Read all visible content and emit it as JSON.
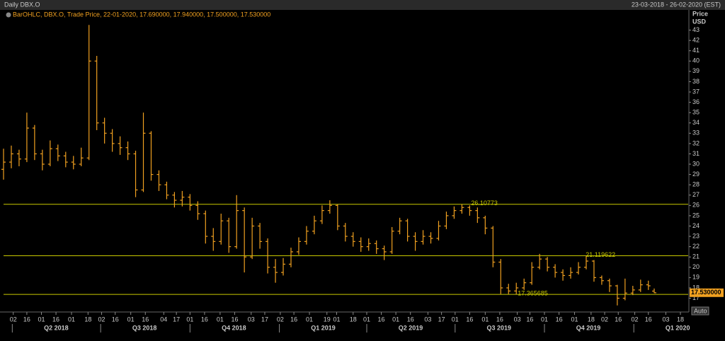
{
  "chart_data": {
    "type": "ohlc",
    "title": "Daily DBX.O",
    "range_text": "23-03-2018 - 26-02-2020 (EST)",
    "legend": "BarOHLC, DBX.O, Trade Price, 22-01-2020, 17.690000, 17.940000, 17.500000, 17.530000",
    "y_label": "Price",
    "y_unit": "USD",
    "auto_button": "Auto",
    "color": "#f0a020",
    "level_color": "#c8c800",
    "xlim": [
      0,
      705
    ],
    "ylim": [
      15.8,
      44
    ],
    "yticks": [
      17,
      18,
      19,
      20,
      21,
      22,
      23,
      24,
      25,
      26,
      27,
      28,
      29,
      30,
      31,
      32,
      33,
      34,
      35,
      36,
      37,
      38,
      39,
      40,
      41,
      42,
      43
    ],
    "xticks": [
      {
        "value": 10,
        "label": "02"
      },
      {
        "value": 24,
        "label": "16"
      },
      {
        "value": 39,
        "label": "01"
      },
      {
        "value": 54,
        "label": "16"
      },
      {
        "value": 70,
        "label": "01"
      },
      {
        "value": 87,
        "label": "18"
      },
      {
        "value": 101,
        "label": "02"
      },
      {
        "value": 115,
        "label": "16"
      },
      {
        "value": 131,
        "label": "01"
      },
      {
        "value": 146,
        "label": "16"
      },
      {
        "value": 165,
        "label": "04"
      },
      {
        "value": 178,
        "label": "17"
      },
      {
        "value": 192,
        "label": "01"
      },
      {
        "value": 207,
        "label": "16"
      },
      {
        "value": 223,
        "label": "01"
      },
      {
        "value": 238,
        "label": "16"
      },
      {
        "value": 255,
        "label": "03"
      },
      {
        "value": 269,
        "label": "17"
      },
      {
        "value": 285,
        "label": "02"
      },
      {
        "value": 299,
        "label": "16"
      },
      {
        "value": 315,
        "label": "01"
      },
      {
        "value": 333,
        "label": "19"
      },
      {
        "value": 343,
        "label": "01"
      },
      {
        "value": 360,
        "label": "18"
      },
      {
        "value": 374,
        "label": "01"
      },
      {
        "value": 389,
        "label": "16"
      },
      {
        "value": 404,
        "label": "01"
      },
      {
        "value": 419,
        "label": "16"
      },
      {
        "value": 437,
        "label": "03"
      },
      {
        "value": 451,
        "label": "17"
      },
      {
        "value": 465,
        "label": "01"
      },
      {
        "value": 480,
        "label": "16"
      },
      {
        "value": 496,
        "label": "01"
      },
      {
        "value": 511,
        "label": "16"
      },
      {
        "value": 529,
        "label": "03"
      },
      {
        "value": 542,
        "label": "16"
      },
      {
        "value": 557,
        "label": "01"
      },
      {
        "value": 572,
        "label": "16"
      },
      {
        "value": 588,
        "label": "01"
      },
      {
        "value": 605,
        "label": "18"
      },
      {
        "value": 619,
        "label": "02"
      },
      {
        "value": 633,
        "label": "16"
      },
      {
        "value": 650,
        "label": "02"
      },
      {
        "value": 664,
        "label": "16"
      },
      {
        "value": 682,
        "label": "03"
      },
      {
        "value": 697,
        "label": "18"
      }
    ],
    "quarters": [
      {
        "value": 9,
        "label": "Q2 2018"
      },
      {
        "value": 100,
        "label": "Q3 2018"
      },
      {
        "value": 192,
        "label": "Q4 2018"
      },
      {
        "value": 284,
        "label": "Q1 2019"
      },
      {
        "value": 374,
        "label": "Q2 2019"
      },
      {
        "value": 465,
        "label": "Q3 2019"
      },
      {
        "value": 557,
        "label": "Q4 2019"
      },
      {
        "value": 649,
        "label": "Q1 2020"
      }
    ],
    "levels": [
      {
        "value": 26.10773,
        "x": 480
      },
      {
        "value": 21.119622,
        "x": 598
      },
      {
        "value": 17.365685,
        "x": 528
      }
    ],
    "last": {
      "value": 17.53,
      "label": "17.530000"
    },
    "x": [
      0,
      8,
      16,
      24,
      32,
      40,
      48,
      56,
      64,
      72,
      80,
      88,
      96,
      104,
      112,
      120,
      128,
      136,
      144,
      152,
      160,
      168,
      176,
      184,
      192,
      200,
      208,
      216,
      224,
      232,
      240,
      248,
      256,
      264,
      272,
      280,
      288,
      296,
      304,
      312,
      320,
      328,
      336,
      344,
      352,
      360,
      368,
      376,
      384,
      392,
      400,
      408,
      416,
      424,
      432,
      440,
      448,
      456,
      464,
      472,
      480,
      488,
      496,
      504,
      512,
      520,
      528,
      536,
      544,
      552,
      560,
      568,
      576,
      584,
      592,
      600,
      608,
      616,
      624,
      632,
      640,
      648,
      656,
      664,
      670
    ],
    "open": [
      29.5,
      30.2,
      31.0,
      30.5,
      33.5,
      31.0,
      30.0,
      31.5,
      30.8,
      30.2,
      30.0,
      30.6,
      40.0,
      34.0,
      33.0,
      32.0,
      31.6,
      31.0,
      27.5,
      33.0,
      29.0,
      28.0,
      27.0,
      26.5,
      26.8,
      26.0,
      25.2,
      23.0,
      22.5,
      24.5,
      22.0,
      25.5,
      21.0,
      24.0,
      22.5,
      20.0,
      19.5,
      20.3,
      21.5,
      22.5,
      23.5,
      24.5,
      25.5,
      26.0,
      24.0,
      23.0,
      22.5,
      22.0,
      22.3,
      21.8,
      21.5,
      23.5,
      24.5,
      23.0,
      22.5,
      23.0,
      22.8,
      24.0,
      25.0,
      25.5,
      25.8,
      25.5,
      24.8,
      23.8,
      20.5,
      18.0,
      17.7,
      18.0,
      18.5,
      20.0,
      20.8,
      20.0,
      19.5,
      19.2,
      19.5,
      20.0,
      20.6,
      19.0,
      18.7,
      18.2,
      17.0,
      17.5,
      17.8,
      18.3,
      17.69
    ],
    "high": [
      31.5,
      31.8,
      31.4,
      35.0,
      33.8,
      31.4,
      32.3,
      31.9,
      31.2,
      30.8,
      31.6,
      43.5,
      40.5,
      34.5,
      33.4,
      32.7,
      32.2,
      31.3,
      35.0,
      33.2,
      29.4,
      28.3,
      27.3,
      27.4,
      27.1,
      26.4,
      25.5,
      23.8,
      25.2,
      24.8,
      27.0,
      25.8,
      24.8,
      24.3,
      22.8,
      20.8,
      20.9,
      21.9,
      22.9,
      24.0,
      25.0,
      26.0,
      26.5,
      26.1,
      24.3,
      23.4,
      22.9,
      22.8,
      22.6,
      22.1,
      23.9,
      24.8,
      24.7,
      23.4,
      23.6,
      23.4,
      24.5,
      25.4,
      25.9,
      26.1,
      26.0,
      25.8,
      25.0,
      24.0,
      20.8,
      18.4,
      18.5,
      18.9,
      20.5,
      21.3,
      21.0,
      20.3,
      19.8,
      20.0,
      20.5,
      21.12,
      20.7,
      19.2,
      18.9,
      18.3,
      18.9,
      18.2,
      18.8,
      18.7,
      17.94
    ],
    "low": [
      28.5,
      29.6,
      29.8,
      30.2,
      30.4,
      29.4,
      29.8,
      30.3,
      29.7,
      29.5,
      29.8,
      30.4,
      33.3,
      32.0,
      31.2,
      30.9,
      30.4,
      26.8,
      27.3,
      28.4,
      27.4,
      26.6,
      25.8,
      25.9,
      25.5,
      24.6,
      22.3,
      21.6,
      22.2,
      21.4,
      21.8,
      19.5,
      20.8,
      21.8,
      19.4,
      18.5,
      19.2,
      20.0,
      21.2,
      22.2,
      23.2,
      24.2,
      25.2,
      23.6,
      22.5,
      22.0,
      21.5,
      21.6,
      21.3,
      20.7,
      21.3,
      23.2,
      22.5,
      21.6,
      22.2,
      22.3,
      22.6,
      23.7,
      24.7,
      25.2,
      25.0,
      24.3,
      23.2,
      20.0,
      17.4,
      17.4,
      17.4,
      17.8,
      18.3,
      19.8,
      19.6,
      19.0,
      18.7,
      18.9,
      19.3,
      19.8,
      18.6,
      18.3,
      17.6,
      16.3,
      16.8,
      17.3,
      17.6,
      17.8,
      17.5
    ],
    "close": [
      30.2,
      31.0,
      30.5,
      33.5,
      31.0,
      30.0,
      31.5,
      30.8,
      30.2,
      30.0,
      30.6,
      40.0,
      34.0,
      33.0,
      32.0,
      31.6,
      31.0,
      27.5,
      33.0,
      29.0,
      28.0,
      27.0,
      26.5,
      26.8,
      26.0,
      25.2,
      23.0,
      22.5,
      24.5,
      22.0,
      25.5,
      21.0,
      24.0,
      22.5,
      20.0,
      19.5,
      20.3,
      21.5,
      22.5,
      23.5,
      24.5,
      25.5,
      26.0,
      24.0,
      23.0,
      22.5,
      22.0,
      22.3,
      21.8,
      21.5,
      23.5,
      24.5,
      23.0,
      22.5,
      23.0,
      22.8,
      24.0,
      25.0,
      25.5,
      25.8,
      25.5,
      24.8,
      23.8,
      20.5,
      18.0,
      17.7,
      18.0,
      18.5,
      20.0,
      20.8,
      20.0,
      19.5,
      19.2,
      19.5,
      20.0,
      20.6,
      19.0,
      18.7,
      18.2,
      17.0,
      17.5,
      17.8,
      18.3,
      18.2,
      17.53
    ]
  }
}
